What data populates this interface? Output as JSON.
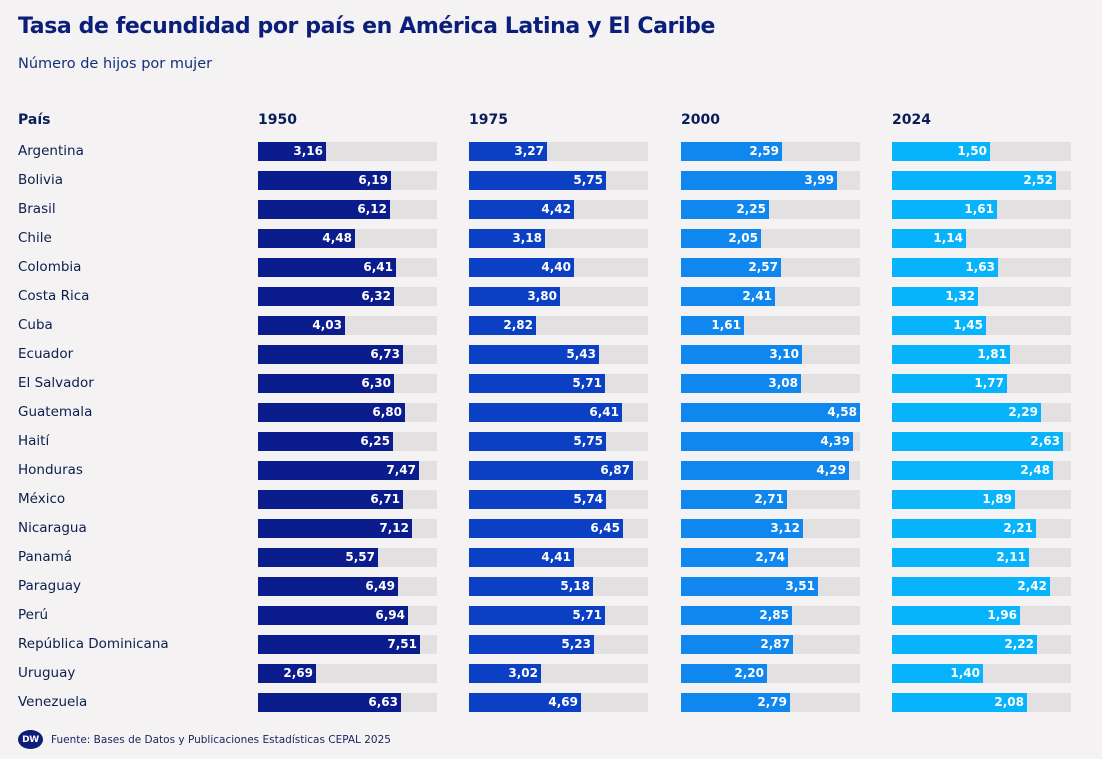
{
  "chart_data": {
    "type": "bar",
    "title": "Tasa de fecundidad por país en América Latina y El Caribe",
    "subtitle": "Número de hijos por mujer",
    "category_header": "País",
    "categories": [
      "Argentina",
      "Bolivia",
      "Brasil",
      "Chile",
      "Colombia",
      "Costa Rica",
      "Cuba",
      "Ecuador",
      "El Salvador",
      "Guatemala",
      "Haití",
      "Honduras",
      "México",
      "Nicaragua",
      "Panamá",
      "Paraguay",
      "Perú",
      "República Dominicana",
      "Uruguay",
      "Venezuela"
    ],
    "series": [
      {
        "name": "1950",
        "color": "#0b1c8c",
        "values": [
          3.16,
          6.19,
          6.12,
          4.48,
          6.41,
          6.32,
          4.03,
          6.73,
          6.3,
          6.8,
          6.25,
          7.47,
          6.71,
          7.12,
          5.57,
          6.49,
          6.94,
          7.51,
          2.69,
          6.63
        ],
        "labels": [
          "3,16",
          "6,19",
          "6,12",
          "4,48",
          "6,41",
          "6,32",
          "4,03",
          "6,73",
          "6,30",
          "6,80",
          "6,25",
          "7,47",
          "6,71",
          "7,12",
          "5,57",
          "6,49",
          "6,94",
          "7,51",
          "2,69",
          "6,63"
        ]
      },
      {
        "name": "1975",
        "color": "#0c40c4",
        "values": [
          3.27,
          5.75,
          4.42,
          3.18,
          4.4,
          3.8,
          2.82,
          5.43,
          5.71,
          6.41,
          5.75,
          6.87,
          5.74,
          6.45,
          4.41,
          5.18,
          5.71,
          5.23,
          3.02,
          4.69
        ],
        "labels": [
          "3,27",
          "5,75",
          "4,42",
          "3,18",
          "4,40",
          "3,80",
          "2,82",
          "5,43",
          "5,71",
          "6,41",
          "5,75",
          "6,87",
          "5,74",
          "6,45",
          "4,41",
          "5,18",
          "5,71",
          "5,23",
          "3,02",
          "4,69"
        ]
      },
      {
        "name": "2000",
        "color": "#0f87ee",
        "values": [
          2.59,
          3.99,
          2.25,
          2.05,
          2.57,
          2.41,
          1.61,
          3.1,
          3.08,
          4.58,
          4.39,
          4.29,
          2.71,
          3.12,
          2.74,
          3.51,
          2.85,
          2.87,
          2.2,
          2.79
        ],
        "labels": [
          "2,59",
          "3,99",
          "2,25",
          "2,05",
          "2,57",
          "2,41",
          "1,61",
          "3,10",
          "3,08",
          "4,58",
          "4,39",
          "4,29",
          "2,71",
          "3,12",
          "2,74",
          "3,51",
          "2,85",
          "2,87",
          "2,20",
          "2,79"
        ]
      },
      {
        "name": "2024",
        "color": "#07b3fa",
        "values": [
          1.5,
          2.52,
          1.61,
          1.14,
          1.63,
          1.32,
          1.45,
          1.81,
          1.77,
          2.29,
          2.63,
          2.48,
          1.89,
          2.21,
          2.11,
          2.42,
          1.96,
          2.22,
          1.4,
          2.08
        ],
        "labels": [
          "1,50",
          "2,52",
          "1,61",
          "1,14",
          "1,63",
          "1,32",
          "1,45",
          "1,81",
          "1,77",
          "2,29",
          "2,63",
          "2,48",
          "1,89",
          "2,21",
          "2,11",
          "2,42",
          "1,96",
          "2,22",
          "1,40",
          "2,08"
        ]
      }
    ],
    "track_colors": {
      "1950": "#e3e0e2",
      "1975": "#e3e0e2",
      "2000": "#e3e0e2",
      "2024": "#e3e0e2"
    },
    "column_max": [
      8.3,
      7.5,
      4.58,
      2.75
    ],
    "grid": false,
    "legend": "none"
  },
  "footer": {
    "logo_text": "DW",
    "source": "Fuente: Bases de Datos y Publicaciones Estadísticas CEPAL 2025"
  }
}
